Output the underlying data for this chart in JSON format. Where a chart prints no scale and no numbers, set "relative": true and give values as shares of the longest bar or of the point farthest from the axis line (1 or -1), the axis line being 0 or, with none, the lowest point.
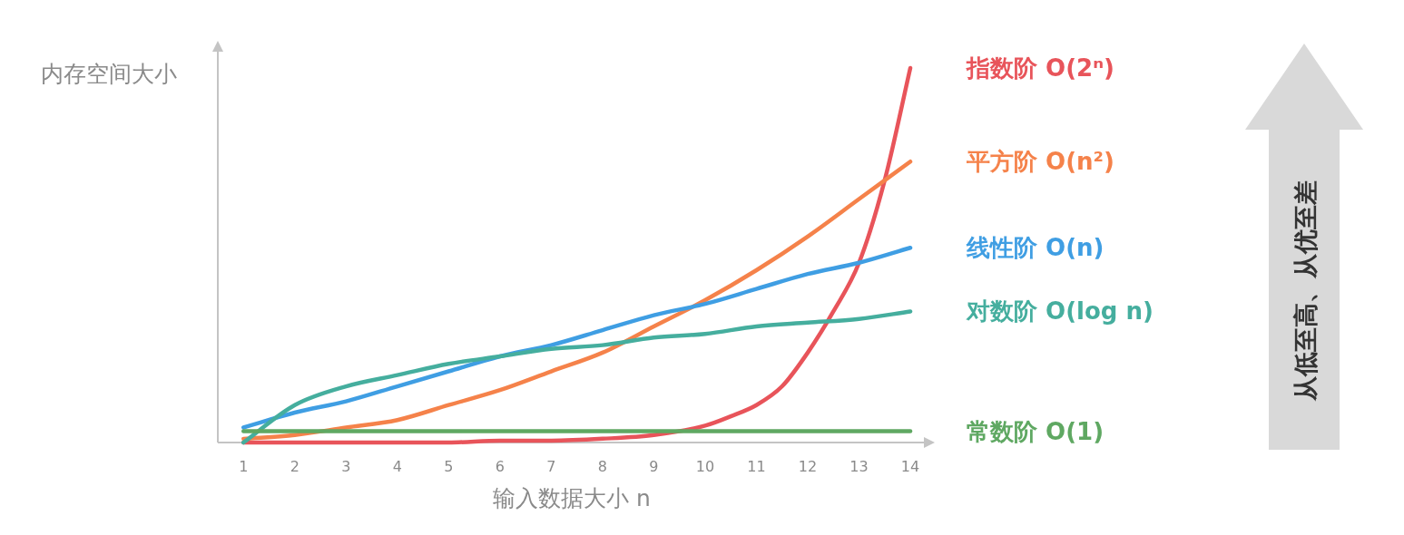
{
  "chart_data": {
    "type": "line",
    "relative": true,
    "xlabel": "输入数据大小 n",
    "ylabel": "内存空间大小",
    "x": [
      1,
      2,
      3,
      4,
      5,
      6,
      7,
      8,
      9,
      10,
      11,
      12,
      13,
      14
    ],
    "xlim": [
      0.5,
      14.3
    ],
    "xticks": [
      1,
      2,
      3,
      4,
      5,
      6,
      7,
      8,
      9,
      10,
      11,
      12,
      13,
      14
    ],
    "series": [
      {
        "name": "指数阶 O(2ⁿ)",
        "color": "#e8545a",
        "x": [
          1,
          2,
          3,
          4,
          5,
          6,
          7,
          8,
          9,
          10,
          10.5,
          11,
          11.5,
          12,
          12.5,
          13,
          13.5,
          14
        ],
        "values": [
          0,
          0,
          0,
          0,
          0,
          0.005,
          0.005,
          0.01,
          0.02,
          0.045,
          0.07,
          0.1,
          0.15,
          0.24,
          0.35,
          0.48,
          0.7,
          1
        ]
      },
      {
        "name": "平方阶 O(n²)",
        "color": "#f5824a",
        "values": [
          0.01,
          0.02,
          0.04,
          0.06,
          0.1,
          0.14,
          0.19,
          0.24,
          0.31,
          0.38,
          0.46,
          0.55,
          0.65,
          0.75
        ]
      },
      {
        "name": "线性阶 O(n)",
        "color": "#3f9ee3",
        "values": [
          0.04,
          0.08,
          0.11,
          0.15,
          0.19,
          0.23,
          0.26,
          0.3,
          0.34,
          0.37,
          0.41,
          0.45,
          0.48,
          0.52
        ]
      },
      {
        "name": "对数阶 O(log n)",
        "color": "#45ae9e",
        "values": [
          0,
          0.1,
          0.15,
          0.18,
          0.21,
          0.23,
          0.25,
          0.26,
          0.28,
          0.29,
          0.31,
          0.32,
          0.33,
          0.35
        ]
      },
      {
        "name": "常数阶 O(1)",
        "color": "#5fa862",
        "values": [
          0.03,
          0.03,
          0.03,
          0.03,
          0.03,
          0.03,
          0.03,
          0.03,
          0.03,
          0.03,
          0.03,
          0.03,
          0.03,
          0.03
        ]
      }
    ],
    "annotations": [
      "从低至高、从优至差"
    ]
  }
}
